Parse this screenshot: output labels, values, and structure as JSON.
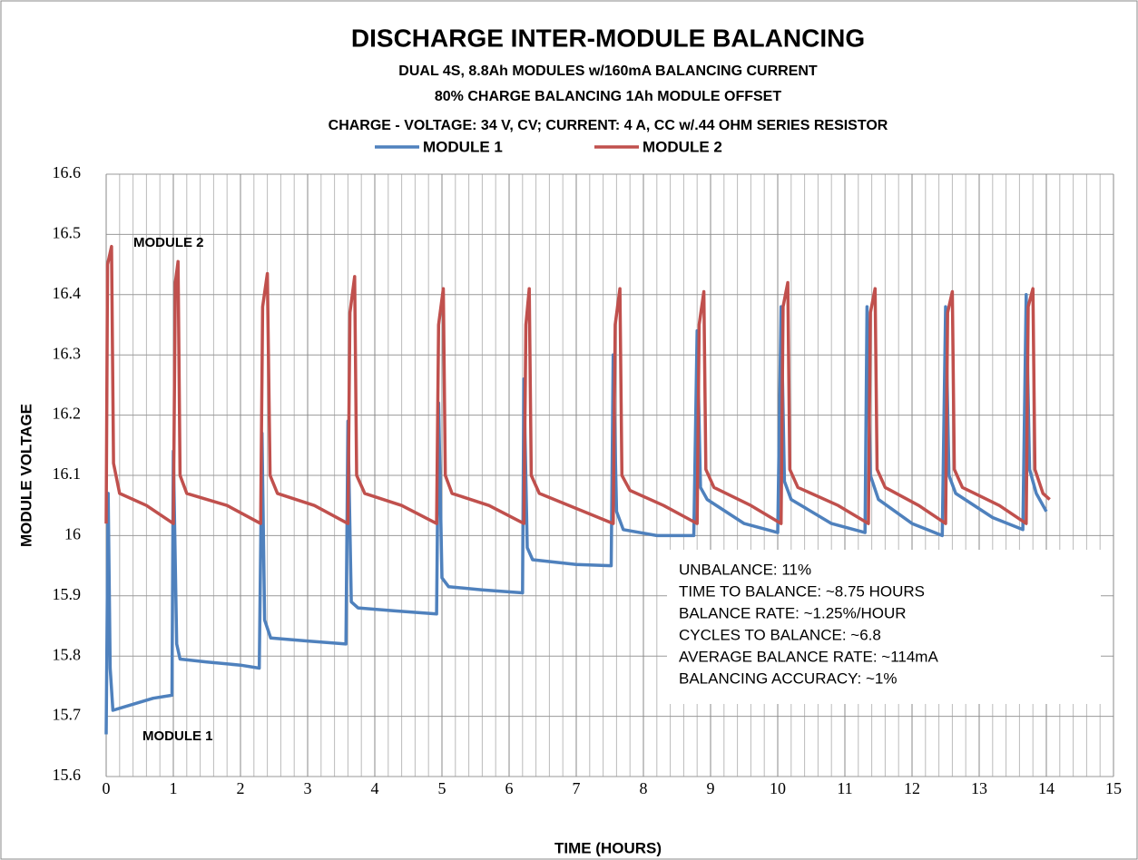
{
  "chart_data": {
    "type": "line",
    "title": "DISCHARGE INTER-MODULE BALANCING",
    "subtitles": [
      "DUAL 4S, 8.8Ah MODULES w/160mA BALANCING CURRENT",
      "80% CHARGE BALANCING  1Ah MODULE OFFSET",
      "CHARGE - VOLTAGE:  34 V, CV; CURRENT:  4 A, CC w/.44 OHM SERIES RESISTOR"
    ],
    "x_label": "TIME (HOURS)",
    "y_label": "MODULE VOLTAGE",
    "annotations": [
      "MODULE 2",
      "MODULE 1"
    ],
    "stats": [
      "UNBALANCE:  11%",
      "TIME TO BALANCE:  ~8.75 HOURS",
      "BALANCE RATE:  ~1.25%/HOUR",
      "CYCLES TO BALANCE:  ~6.8",
      "AVERAGE BALANCE RATE:  ~114mA",
      "BALANCING ACCURACY:  ~1%"
    ],
    "xlim": [
      0,
      15
    ],
    "xticks": [
      0,
      1,
      2,
      3,
      4,
      5,
      6,
      7,
      8,
      9,
      10,
      11,
      12,
      13,
      14,
      15
    ],
    "ylim": [
      15.6,
      16.6
    ],
    "yticks": [
      15.6,
      15.7,
      15.8,
      15.9,
      16,
      16.1,
      16.2,
      16.3,
      16.4,
      16.5,
      16.6
    ],
    "grid": true,
    "legend": "top",
    "series": [
      {
        "name": "MODULE 1",
        "color": "#4f81bd",
        "x": [
          0,
          0.03,
          0.06,
          0.1,
          0.4,
          0.7,
          0.98,
          1.0,
          1.05,
          1.1,
          1.5,
          2.0,
          2.28,
          2.32,
          2.36,
          2.45,
          3.0,
          3.57,
          3.6,
          3.65,
          3.75,
          4.3,
          4.92,
          4.95,
          5.0,
          5.1,
          5.6,
          6.2,
          6.22,
          6.27,
          6.35,
          7.0,
          7.52,
          7.55,
          7.6,
          7.7,
          8.2,
          8.75,
          8.8,
          8.85,
          8.95,
          9.5,
          10.0,
          10.05,
          10.1,
          10.2,
          10.8,
          11.3,
          11.33,
          11.38,
          11.5,
          12.0,
          12.45,
          12.5,
          12.55,
          12.65,
          13.2,
          13.65,
          13.7,
          13.75,
          13.85,
          14.0
        ],
        "values": [
          15.67,
          16.07,
          15.78,
          15.71,
          15.72,
          15.73,
          15.735,
          16.14,
          15.82,
          15.795,
          15.79,
          15.785,
          15.78,
          16.17,
          15.86,
          15.83,
          15.825,
          15.82,
          16.19,
          15.89,
          15.88,
          15.875,
          15.87,
          16.22,
          15.93,
          15.915,
          15.91,
          15.905,
          16.26,
          15.98,
          15.96,
          15.952,
          15.95,
          16.3,
          16.04,
          16.01,
          16.0,
          16.0,
          16.34,
          16.08,
          16.06,
          16.02,
          16.005,
          16.38,
          16.09,
          16.06,
          16.02,
          16.005,
          16.38,
          16.1,
          16.06,
          16.02,
          16.0,
          16.38,
          16.1,
          16.07,
          16.03,
          16.01,
          16.4,
          16.11,
          16.07,
          16.04
        ]
      },
      {
        "name": "MODULE 2",
        "color": "#c0504d",
        "x": [
          0,
          0.02,
          0.08,
          0.11,
          0.2,
          0.6,
          1.0,
          1.03,
          1.07,
          1.1,
          1.2,
          1.8,
          2.3,
          2.33,
          2.4,
          2.44,
          2.55,
          3.1,
          3.6,
          3.63,
          3.7,
          3.73,
          3.85,
          4.4,
          4.92,
          4.95,
          5.02,
          5.05,
          5.15,
          5.7,
          6.22,
          6.25,
          6.3,
          6.33,
          6.45,
          7.0,
          7.55,
          7.58,
          7.65,
          7.68,
          7.8,
          8.3,
          8.8,
          8.83,
          8.9,
          8.93,
          9.05,
          9.6,
          10.05,
          10.08,
          10.15,
          10.18,
          10.3,
          10.9,
          11.35,
          11.38,
          11.45,
          11.48,
          11.6,
          12.1,
          12.5,
          12.53,
          12.6,
          12.63,
          12.75,
          13.3,
          13.7,
          13.73,
          13.8,
          13.83,
          13.95,
          14.05
        ],
        "values": [
          16.02,
          16.45,
          16.48,
          16.12,
          16.07,
          16.05,
          16.02,
          16.42,
          16.455,
          16.1,
          16.07,
          16.05,
          16.02,
          16.38,
          16.435,
          16.1,
          16.07,
          16.05,
          16.02,
          16.37,
          16.43,
          16.1,
          16.07,
          16.05,
          16.02,
          16.35,
          16.41,
          16.1,
          16.07,
          16.05,
          16.02,
          16.35,
          16.41,
          16.1,
          16.07,
          16.045,
          16.02,
          16.35,
          16.41,
          16.1,
          16.075,
          16.05,
          16.02,
          16.35,
          16.405,
          16.11,
          16.08,
          16.05,
          16.02,
          16.38,
          16.42,
          16.11,
          16.08,
          16.05,
          16.02,
          16.37,
          16.41,
          16.11,
          16.08,
          16.05,
          16.02,
          16.37,
          16.405,
          16.11,
          16.08,
          16.05,
          16.02,
          16.38,
          16.41,
          16.11,
          16.07,
          16.06
        ]
      }
    ]
  }
}
